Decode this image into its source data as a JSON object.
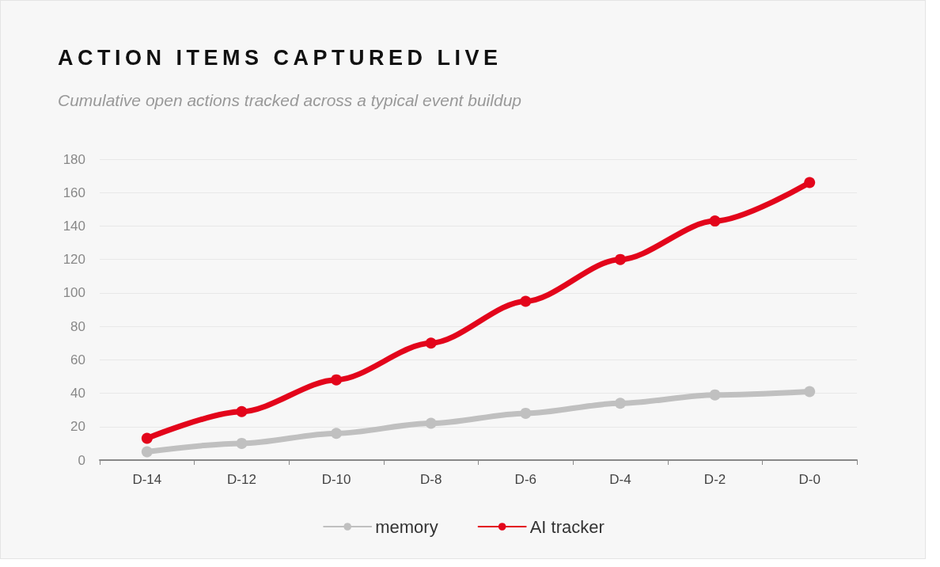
{
  "chart_data": {
    "type": "line",
    "title": "ACTION ITEMS CAPTURED LIVE",
    "subtitle": "Cumulative open actions tracked across a typical event buildup",
    "categories": [
      "D-14",
      "D-12",
      "D-10",
      "D-8",
      "D-6",
      "D-4",
      "D-2",
      "D-0"
    ],
    "series": [
      {
        "name": "memory",
        "color": "#c0c0c0",
        "values": [
          5,
          10,
          16,
          22,
          28,
          34,
          39,
          41
        ]
      },
      {
        "name": "AI tracker",
        "color": "#e3051b",
        "values": [
          13,
          29,
          48,
          70,
          95,
          120,
          143,
          166
        ]
      }
    ],
    "ylim": [
      0,
      180
    ],
    "yticks": [
      0,
      20,
      40,
      60,
      80,
      100,
      120,
      140,
      160,
      180
    ],
    "grid": "y",
    "legend": "bottom",
    "marker": "circle",
    "line_style": "solid"
  }
}
